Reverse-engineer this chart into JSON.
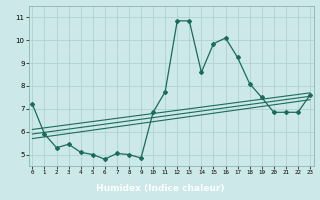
{
  "x": [
    0,
    1,
    2,
    3,
    4,
    5,
    6,
    7,
    8,
    9,
    10,
    11,
    12,
    13,
    14,
    15,
    16,
    17,
    18,
    19,
    20,
    21,
    22,
    23
  ],
  "y_main": [
    7.2,
    5.9,
    5.3,
    5.45,
    5.1,
    5.0,
    4.8,
    5.05,
    5.0,
    4.85,
    6.85,
    7.75,
    10.85,
    10.85,
    8.6,
    9.85,
    10.1,
    9.25,
    8.1,
    7.5,
    6.85,
    6.85,
    6.85,
    7.6
  ],
  "trend1_x": [
    0,
    23
  ],
  "trend1_y": [
    5.9,
    7.55
  ],
  "trend2_x": [
    0,
    23
  ],
  "trend2_y": [
    6.1,
    7.7
  ],
  "trend3_x": [
    0,
    23
  ],
  "trend3_y": [
    5.7,
    7.4
  ],
  "xlim": [
    -0.3,
    23.3
  ],
  "ylim": [
    4.5,
    11.5
  ],
  "yticks": [
    5,
    6,
    7,
    8,
    9,
    10,
    11
  ],
  "xticks": [
    0,
    1,
    2,
    3,
    4,
    5,
    6,
    7,
    8,
    9,
    10,
    11,
    12,
    13,
    14,
    15,
    16,
    17,
    18,
    19,
    20,
    21,
    22,
    23
  ],
  "xlabel": "Humidex (Indice chaleur)",
  "bg_color": "#cce8e8",
  "plot_bg": "#cce8e8",
  "line_color": "#1a6b5a",
  "grid_color": "#aacece",
  "xlabel_bg": "#2a6060",
  "xlabel_color": "#ffffff"
}
